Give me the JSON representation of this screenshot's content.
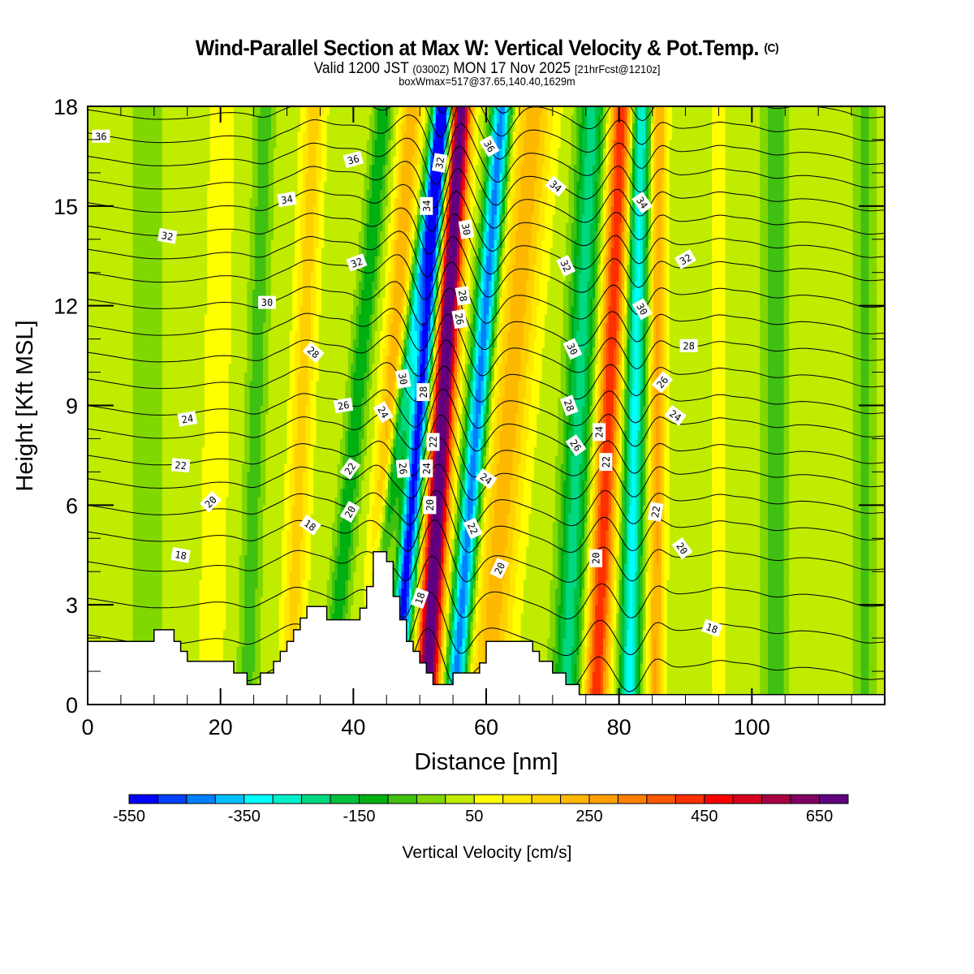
{
  "header": {
    "title_main": "Wind-Parallel Section at Max W: Vertical Velocity & Pot.Temp.",
    "title_unit": "(C)",
    "valid_prefix": "Valid 1200 JST",
    "valid_z": "(0300Z)",
    "valid_date": "MON 17 Nov 2025",
    "valid_fcst": "[21hrFcst@1210z]",
    "box_info": "boxWmax=517@37.65,140.40,1629m"
  },
  "chart_data": {
    "type": "heatmap",
    "title": "Wind-Parallel Section at Max W: Vertical Velocity & Pot.Temp.",
    "xlabel": "Distance [nm]",
    "ylabel": "Height [Kft MSL]",
    "xlim": [
      0,
      120
    ],
    "ylim": [
      0,
      18
    ],
    "xticks": [
      0,
      20,
      40,
      60,
      80,
      100
    ],
    "xtick_labels": [
      "0",
      "20",
      "40",
      "60",
      "80",
      "100"
    ],
    "yticks": [
      0,
      3,
      6,
      9,
      12,
      15,
      18
    ],
    "ytick_labels": [
      "0",
      "3",
      "6",
      "9",
      "12",
      "15",
      "18"
    ],
    "x_minor_step": 5,
    "y_minor_step": 1,
    "colorbar": {
      "title": "Vertical Velocity [cm/s]",
      "levels": [
        -550,
        -500,
        -450,
        -400,
        -350,
        -300,
        -250,
        -200,
        -150,
        -100,
        -50,
        0,
        50,
        100,
        150,
        200,
        250,
        300,
        350,
        400,
        450,
        500,
        550,
        600,
        650,
        700
      ],
      "tick_values": [
        -550,
        -350,
        -150,
        50,
        250,
        450,
        650
      ],
      "tick_labels": [
        "-550",
        "-350",
        "-150",
        "50",
        "250",
        "450",
        "650"
      ],
      "colors": [
        "#0000ff",
        "#0040ff",
        "#0080ff",
        "#00c0ff",
        "#00ffff",
        "#00f0c8",
        "#00d880",
        "#00c040",
        "#00b010",
        "#40c010",
        "#80d800",
        "#c0ec00",
        "#ffff00",
        "#ffe800",
        "#ffd000",
        "#ffb800",
        "#ffa000",
        "#ff8000",
        "#ff5800",
        "#ff3000",
        "#ff0000",
        "#d80020",
        "#a80040",
        "#800060",
        "#600080"
      ]
    },
    "w_bands": [
      {
        "x0": 51.0,
        "tilt": 0.28,
        "amp": 720,
        "width": 1.7
      },
      {
        "x0": 46.3,
        "tilt": 0.42,
        "amp": -560,
        "width": 1.4
      },
      {
        "x0": 55.2,
        "tilt": 0.4,
        "amp": -470,
        "width": 1.5
      },
      {
        "x0": 42.5,
        "tilt": 0.35,
        "amp": 220,
        "width": 1.6
      },
      {
        "x0": 41.5,
        "tilt": 0.65,
        "amp": -300,
        "width": 1.2
      },
      {
        "x0": 60.0,
        "tilt": 0.4,
        "amp": 200,
        "width": 3.0
      },
      {
        "x0": 76.5,
        "tilt": 0.22,
        "amp": 420,
        "width": 1.7
      },
      {
        "x0": 72.0,
        "tilt": 0.22,
        "amp": -250,
        "width": 2.0
      },
      {
        "x0": 81.5,
        "tilt": 0.1,
        "amp": -340,
        "width": 1.5
      },
      {
        "x0": 85.5,
        "tilt": 0.03,
        "amp": 230,
        "width": 1.2
      },
      {
        "x0": 36.5,
        "tilt": 0.45,
        "amp": -170,
        "width": 1.4
      },
      {
        "x0": 30.5,
        "tilt": 0.2,
        "amp": 150,
        "width": 1.6
      },
      {
        "x0": 24.0,
        "tilt": 0.15,
        "amp": -110,
        "width": 1.4
      },
      {
        "x0": 18.5,
        "tilt": 0.1,
        "amp": 60,
        "width": 2.0
      },
      {
        "x0": 9.0,
        "tilt": 0.0,
        "amp": -40,
        "width": 3.0
      },
      {
        "x0": 95.0,
        "tilt": 0.0,
        "amp": 60,
        "width": 1.2
      },
      {
        "x0": 103.5,
        "tilt": 0.0,
        "amp": -110,
        "width": 1.8
      },
      {
        "x0": 117.0,
        "tilt": 0.0,
        "amp": -80,
        "width": 1.8
      }
    ],
    "theta_levels": [
      15,
      16,
      17,
      18,
      19,
      20,
      21,
      22,
      23,
      24,
      25,
      26,
      27,
      28,
      29,
      30,
      31,
      32,
      33,
      34,
      35,
      36,
      37
    ],
    "theta_base_height_kft": [
      1.0,
      2.1,
      3.2,
      4.3,
      5.2,
      6.0,
      6.8,
      7.5,
      8.3,
      9.0,
      9.8,
      10.6,
      11.4,
      12.2,
      13.0,
      13.7,
      14.4,
      15.1,
      15.8,
      16.5,
      17.2,
      17.9,
      18.6
    ],
    "contour_labels": [
      {
        "text": "36",
        "x": 2.0,
        "y": 17.1,
        "angle": 0
      },
      {
        "text": "36",
        "x": 40.0,
        "y": 16.4,
        "angle": -15
      },
      {
        "text": "34",
        "x": 30.0,
        "y": 15.2,
        "angle": -10
      },
      {
        "text": "32",
        "x": 12.0,
        "y": 14.1,
        "angle": 10
      },
      {
        "text": "32",
        "x": 40.5,
        "y": 13.3,
        "angle": -20
      },
      {
        "text": "30",
        "x": 27.0,
        "y": 12.1,
        "angle": 0
      },
      {
        "text": "28",
        "x": 34.0,
        "y": 10.6,
        "angle": 40
      },
      {
        "text": "26",
        "x": 38.5,
        "y": 9.0,
        "angle": -10
      },
      {
        "text": "24",
        "x": 15.0,
        "y": 8.6,
        "angle": -10
      },
      {
        "text": "24",
        "x": 44.5,
        "y": 8.8,
        "angle": 60
      },
      {
        "text": "22",
        "x": 14.0,
        "y": 7.2,
        "angle": 5
      },
      {
        "text": "22",
        "x": 39.5,
        "y": 7.1,
        "angle": -55
      },
      {
        "text": "20",
        "x": 18.5,
        "y": 6.1,
        "angle": -45
      },
      {
        "text": "20",
        "x": 39.5,
        "y": 5.8,
        "angle": -60
      },
      {
        "text": "18",
        "x": 14.0,
        "y": 4.5,
        "angle": 10
      },
      {
        "text": "18",
        "x": 33.5,
        "y": 5.4,
        "angle": 35
      },
      {
        "text": "32",
        "x": 53.0,
        "y": 16.3,
        "angle": -80
      },
      {
        "text": "34",
        "x": 51.0,
        "y": 15.0,
        "angle": -90
      },
      {
        "text": "30",
        "x": 47.5,
        "y": 9.8,
        "angle": 80
      },
      {
        "text": "28",
        "x": 50.5,
        "y": 9.4,
        "angle": -90
      },
      {
        "text": "22",
        "x": 52.0,
        "y": 7.9,
        "angle": -90
      },
      {
        "text": "24",
        "x": 51.0,
        "y": 7.1,
        "angle": -90
      },
      {
        "text": "26",
        "x": 47.5,
        "y": 7.1,
        "angle": 85
      },
      {
        "text": "20",
        "x": 51.5,
        "y": 6.0,
        "angle": -90
      },
      {
        "text": "18",
        "x": 50.0,
        "y": 3.2,
        "angle": -70
      },
      {
        "text": "36",
        "x": 60.5,
        "y": 16.8,
        "angle": 60
      },
      {
        "text": "30",
        "x": 57.0,
        "y": 14.3,
        "angle": 80
      },
      {
        "text": "28",
        "x": 56.5,
        "y": 12.3,
        "angle": 80
      },
      {
        "text": "26",
        "x": 56.0,
        "y": 11.6,
        "angle": 80
      },
      {
        "text": "24",
        "x": 60.0,
        "y": 6.8,
        "angle": 35
      },
      {
        "text": "22",
        "x": 58.0,
        "y": 5.3,
        "angle": 65
      },
      {
        "text": "20",
        "x": 62.0,
        "y": 4.1,
        "angle": -65
      },
      {
        "text": "34",
        "x": 70.5,
        "y": 15.6,
        "angle": 40
      },
      {
        "text": "32",
        "x": 72.0,
        "y": 13.2,
        "angle": 65
      },
      {
        "text": "30",
        "x": 73.0,
        "y": 10.7,
        "angle": 65
      },
      {
        "text": "28",
        "x": 72.5,
        "y": 9.0,
        "angle": 70
      },
      {
        "text": "26",
        "x": 73.5,
        "y": 7.8,
        "angle": 55
      },
      {
        "text": "24",
        "x": 77.0,
        "y": 8.2,
        "angle": -90
      },
      {
        "text": "22",
        "x": 78.0,
        "y": 7.3,
        "angle": -90
      },
      {
        "text": "20",
        "x": 76.5,
        "y": 4.4,
        "angle": -90
      },
      {
        "text": "34",
        "x": 83.5,
        "y": 15.1,
        "angle": 55
      },
      {
        "text": "30",
        "x": 83.5,
        "y": 11.9,
        "angle": 60
      },
      {
        "text": "32",
        "x": 90.0,
        "y": 13.4,
        "angle": -30
      },
      {
        "text": "28",
        "x": 90.5,
        "y": 10.8,
        "angle": 0
      },
      {
        "text": "26",
        "x": 86.5,
        "y": 9.7,
        "angle": -50
      },
      {
        "text": "24",
        "x": 88.5,
        "y": 8.7,
        "angle": 35
      },
      {
        "text": "22",
        "x": 85.5,
        "y": 5.8,
        "angle": -80
      },
      {
        "text": "20",
        "x": 89.5,
        "y": 4.7,
        "angle": 55
      },
      {
        "text": "18",
        "x": 94.0,
        "y": 2.3,
        "angle": 20
      }
    ],
    "terrain_kft": [
      [
        0,
        1.9
      ],
      [
        10,
        1.9
      ],
      [
        10,
        2.25
      ],
      [
        13,
        2.25
      ],
      [
        13,
        1.9
      ],
      [
        14,
        1.9
      ],
      [
        14,
        1.6
      ],
      [
        15,
        1.6
      ],
      [
        15,
        1.3
      ],
      [
        16,
        1.3
      ],
      [
        16,
        1.3
      ],
      [
        22,
        1.3
      ],
      [
        22,
        0.95
      ],
      [
        24,
        0.95
      ],
      [
        24,
        0.6
      ],
      [
        26,
        0.6
      ],
      [
        26,
        0.95
      ],
      [
        28,
        0.95
      ],
      [
        28,
        1.3
      ],
      [
        29,
        1.3
      ],
      [
        29,
        1.6
      ],
      [
        30,
        1.6
      ],
      [
        30,
        1.9
      ],
      [
        31,
        1.9
      ],
      [
        31,
        2.25
      ],
      [
        32,
        2.25
      ],
      [
        32,
        2.6
      ],
      [
        33,
        2.6
      ],
      [
        33,
        2.95
      ],
      [
        36,
        2.95
      ],
      [
        36,
        2.55
      ],
      [
        41,
        2.55
      ],
      [
        41,
        2.9
      ],
      [
        42,
        2.9
      ],
      [
        42,
        3.55
      ],
      [
        43,
        3.55
      ],
      [
        43,
        4.6
      ],
      [
        45,
        4.6
      ],
      [
        45,
        4.3
      ],
      [
        46,
        4.3
      ],
      [
        46,
        3.25
      ],
      [
        47,
        3.25
      ],
      [
        47,
        2.55
      ],
      [
        48,
        2.55
      ],
      [
        48,
        1.9
      ],
      [
        49,
        1.9
      ],
      [
        49,
        1.6
      ],
      [
        50,
        1.6
      ],
      [
        50,
        1.25
      ],
      [
        51,
        1.25
      ],
      [
        51,
        0.95
      ],
      [
        52,
        0.95
      ],
      [
        52,
        0.6
      ],
      [
        55,
        0.6
      ],
      [
        55,
        0.95
      ],
      [
        56,
        0.95
      ],
      [
        56,
        0.95
      ],
      [
        59,
        0.95
      ],
      [
        59,
        1.25
      ],
      [
        60,
        1.25
      ],
      [
        60,
        1.9
      ],
      [
        67,
        1.9
      ],
      [
        67,
        1.6
      ],
      [
        68,
        1.6
      ],
      [
        68,
        1.3
      ],
      [
        70,
        1.3
      ],
      [
        70,
        0.95
      ],
      [
        72,
        0.95
      ],
      [
        72,
        0.6
      ],
      [
        74,
        0.6
      ],
      [
        74,
        0.3
      ],
      [
        120,
        0.3
      ]
    ]
  }
}
